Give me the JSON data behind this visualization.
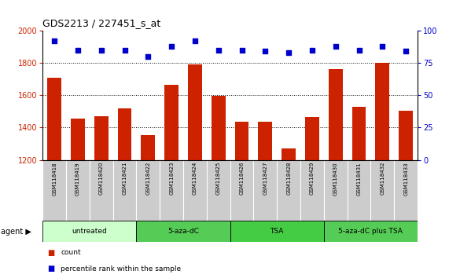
{
  "title": "GDS2213 / 227451_s_at",
  "samples": [
    "GSM118418",
    "GSM118419",
    "GSM118420",
    "GSM118421",
    "GSM118422",
    "GSM118423",
    "GSM118424",
    "GSM118425",
    "GSM118426",
    "GSM118427",
    "GSM118428",
    "GSM118429",
    "GSM118430",
    "GSM118431",
    "GSM118432",
    "GSM118433"
  ],
  "counts": [
    1710,
    1455,
    1468,
    1520,
    1355,
    1665,
    1790,
    1595,
    1435,
    1435,
    1270,
    1465,
    1760,
    1530,
    1800,
    1505
  ],
  "percentiles": [
    92,
    85,
    85,
    85,
    80,
    88,
    92,
    85,
    85,
    84,
    83,
    85,
    88,
    85,
    88,
    84
  ],
  "bar_color": "#cc2200",
  "dot_color": "#0000cc",
  "ylim_left": [
    1200,
    2000
  ],
  "ylim_right": [
    0,
    100
  ],
  "yticks_left": [
    1200,
    1400,
    1600,
    1800,
    2000
  ],
  "yticks_right": [
    0,
    25,
    50,
    75,
    100
  ],
  "grid_values": [
    1400,
    1600,
    1800
  ],
  "groups": [
    {
      "label": "untreated",
      "start": 0,
      "end": 4
    },
    {
      "label": "5-aza-dC",
      "start": 4,
      "end": 8
    },
    {
      "label": "TSA",
      "start": 8,
      "end": 12
    },
    {
      "label": "5-aza-dC plus TSA",
      "start": 12,
      "end": 16
    }
  ],
  "group_colors": [
    "#ccffcc",
    "#55cc55",
    "#44cc44",
    "#55cc55"
  ],
  "xlabel_agent": "agent",
  "legend_count_label": "count",
  "legend_pct_label": "percentile rank within the sample",
  "bg_color": "#ffffff",
  "xticklabel_bg": "#cccccc",
  "fig_width": 5.71,
  "fig_height": 3.54,
  "dpi": 100
}
